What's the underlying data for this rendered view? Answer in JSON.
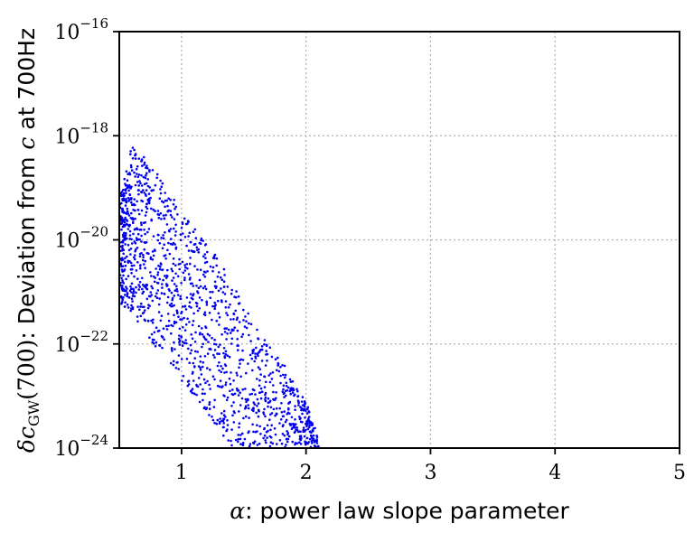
{
  "chart_data": {
    "type": "scatter",
    "title": "",
    "xlabel_math": "α",
    "xlabel_text": ": power law slope parameter",
    "ylabel_math_delta": "δc",
    "ylabel_math_sub": "GW",
    "ylabel_math_arg": "(700)",
    "ylabel_text": ": Deviation from ",
    "ylabel_c": "c",
    "ylabel_text2": " at 700Hz",
    "xlim": [
      0.5,
      5
    ],
    "ylim_log10": [
      -24,
      -16
    ],
    "yscale": "log",
    "grid": true,
    "x_ticks": [
      1,
      2,
      3,
      4,
      5
    ],
    "x_tick_labels": [
      "1",
      "2",
      "3",
      "4",
      "5"
    ],
    "y_ticks_log10": [
      -24,
      -22,
      -20,
      -18,
      -16
    ],
    "y_tick_labels": [
      {
        "base": "10",
        "exp": "−24"
      },
      {
        "base": "10",
        "exp": "−22"
      },
      {
        "base": "10",
        "exp": "−20"
      },
      {
        "base": "10",
        "exp": "−18"
      },
      {
        "base": "10",
        "exp": "−16"
      }
    ],
    "marker_color": "#0000ee",
    "series": [
      {
        "band": {
          "alpha_range": [
            0.5,
            2.1
          ],
          "upper_log10": [
            [
              0.5,
              -19.2
            ],
            [
              0.6,
              -18.2
            ],
            [
              0.7,
              -18.4
            ],
            [
              0.85,
              -18.8
            ],
            [
              1.0,
              -19.5
            ],
            [
              1.2,
              -20.0
            ],
            [
              1.3,
              -20.4
            ],
            [
              1.45,
              -21.0
            ],
            [
              1.6,
              -21.7
            ],
            [
              1.8,
              -22.3
            ],
            [
              2.0,
              -23.1
            ],
            [
              2.1,
              -23.8
            ]
          ],
          "lower_log10": [
            [
              0.5,
              -21.2
            ],
            [
              0.6,
              -21.4
            ],
            [
              0.8,
              -22.1
            ],
            [
              1.0,
              -22.7
            ],
            [
              1.2,
              -23.3
            ],
            [
              1.4,
              -24.0
            ],
            [
              1.6,
              -24.0
            ],
            [
              2.1,
              -24.0
            ]
          ],
          "point_count": 1500
        }
      }
    ]
  }
}
